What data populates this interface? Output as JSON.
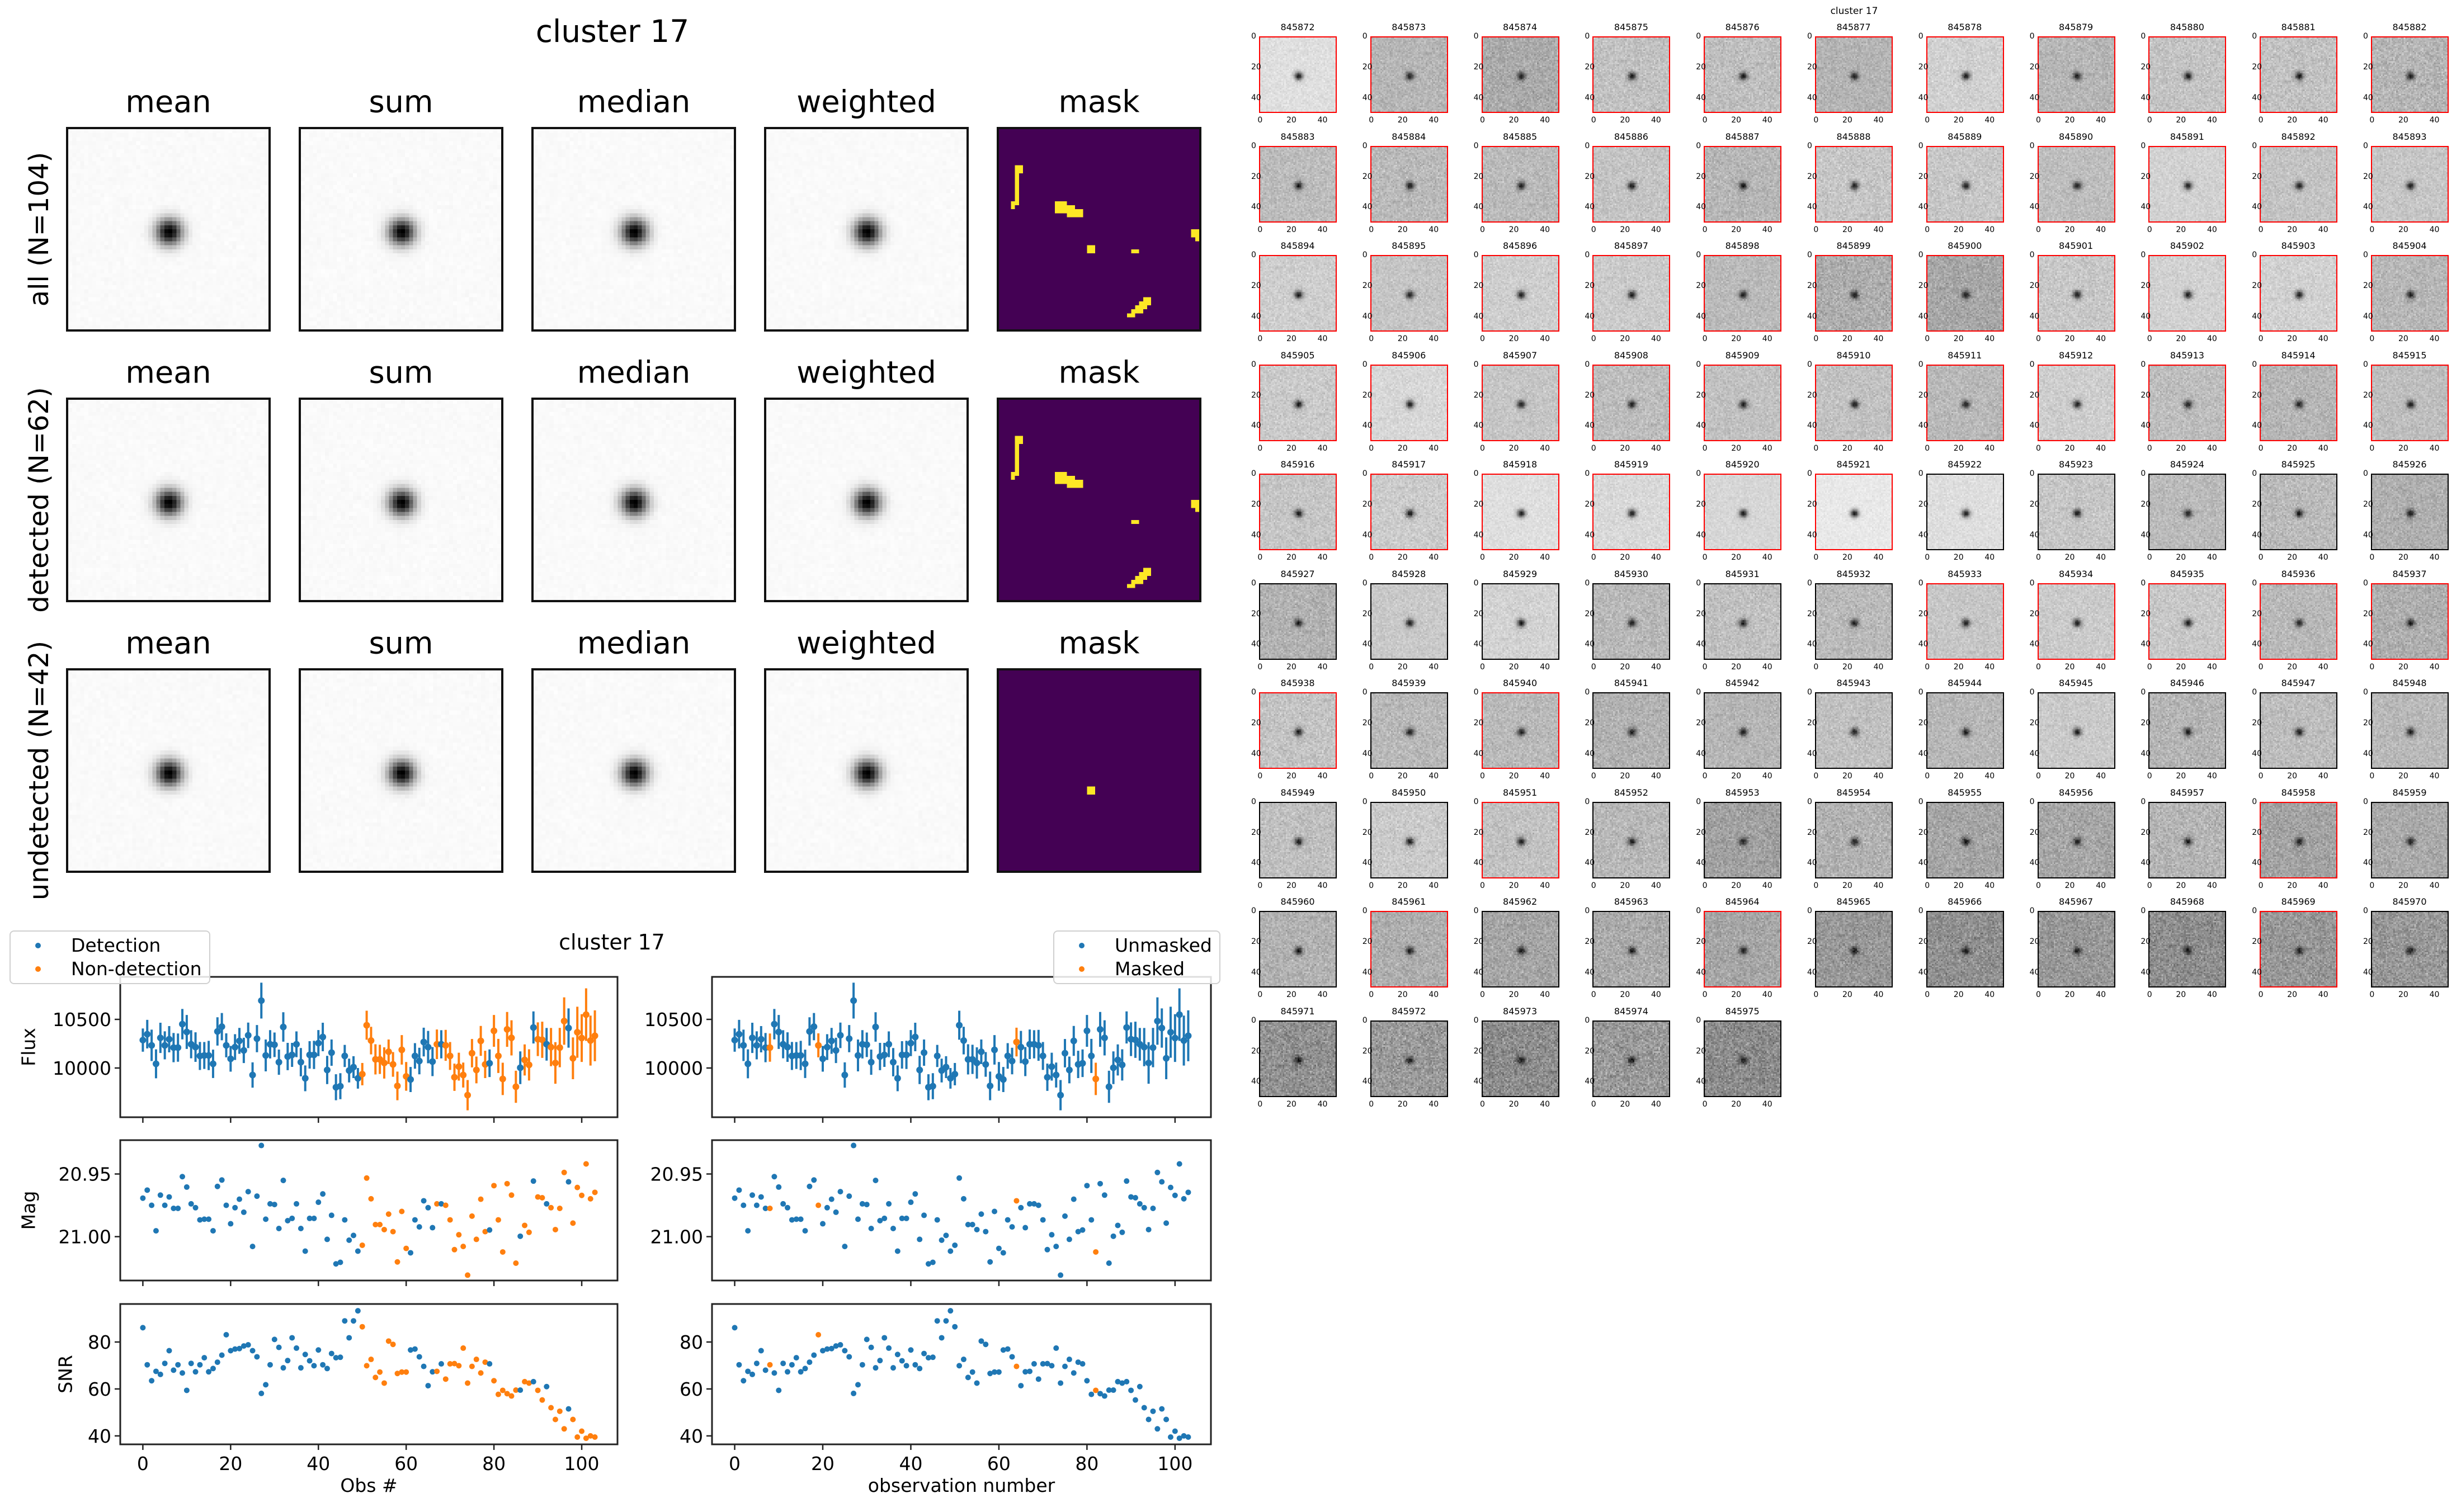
{
  "stacks": {
    "title": "cluster 17",
    "columns": [
      "mean",
      "sum",
      "median",
      "weighted",
      "mask"
    ],
    "rows": [
      {
        "label": "all (N=104)",
        "mask_cells": [
          [
            9,
            4
          ],
          [
            9,
            5
          ],
          [
            10,
            4
          ],
          [
            10,
            5
          ],
          [
            11,
            4
          ],
          [
            12,
            4
          ],
          [
            13,
            4
          ],
          [
            14,
            4
          ],
          [
            15,
            4
          ],
          [
            16,
            4
          ],
          [
            17,
            4
          ],
          [
            18,
            3
          ],
          [
            18,
            4
          ],
          [
            19,
            3
          ],
          [
            18,
            14
          ],
          [
            18,
            15
          ],
          [
            18,
            16
          ],
          [
            19,
            14
          ],
          [
            19,
            15
          ],
          [
            19,
            16
          ],
          [
            20,
            14
          ],
          [
            20,
            15
          ],
          [
            20,
            16
          ],
          [
            19,
            17
          ],
          [
            19,
            18
          ],
          [
            20,
            17
          ],
          [
            20,
            18
          ],
          [
            21,
            17
          ],
          [
            21,
            18
          ],
          [
            20,
            19
          ],
          [
            20,
            20
          ],
          [
            21,
            19
          ],
          [
            21,
            20
          ],
          [
            29,
            22
          ],
          [
            29,
            23
          ],
          [
            30,
            22
          ],
          [
            30,
            23
          ],
          [
            30,
            33
          ],
          [
            30,
            34
          ],
          [
            25,
            48
          ],
          [
            25,
            49
          ],
          [
            26,
            48
          ],
          [
            26,
            49
          ],
          [
            27,
            49
          ],
          [
            42,
            36
          ],
          [
            42,
            37
          ],
          [
            43,
            35
          ],
          [
            43,
            36
          ],
          [
            43,
            37
          ],
          [
            44,
            34
          ],
          [
            44,
            35
          ],
          [
            44,
            36
          ],
          [
            45,
            33
          ],
          [
            45,
            34
          ],
          [
            45,
            35
          ],
          [
            46,
            32
          ],
          [
            46,
            33
          ]
        ]
      },
      {
        "label": "detected (N=62)",
        "mask_cells": [
          [
            9,
            4
          ],
          [
            9,
            5
          ],
          [
            10,
            4
          ],
          [
            10,
            5
          ],
          [
            11,
            4
          ],
          [
            12,
            4
          ],
          [
            13,
            4
          ],
          [
            14,
            4
          ],
          [
            15,
            4
          ],
          [
            16,
            4
          ],
          [
            17,
            4
          ],
          [
            18,
            3
          ],
          [
            18,
            4
          ],
          [
            19,
            3
          ],
          [
            18,
            14
          ],
          [
            18,
            15
          ],
          [
            18,
            16
          ],
          [
            19,
            14
          ],
          [
            19,
            15
          ],
          [
            19,
            16
          ],
          [
            20,
            14
          ],
          [
            20,
            15
          ],
          [
            20,
            16
          ],
          [
            19,
            17
          ],
          [
            19,
            18
          ],
          [
            20,
            17
          ],
          [
            20,
            18
          ],
          [
            21,
            17
          ],
          [
            21,
            18
          ],
          [
            20,
            19
          ],
          [
            20,
            20
          ],
          [
            21,
            19
          ],
          [
            21,
            20
          ],
          [
            30,
            33
          ],
          [
            30,
            34
          ],
          [
            25,
            48
          ],
          [
            25,
            49
          ],
          [
            26,
            48
          ],
          [
            26,
            49
          ],
          [
            27,
            49
          ],
          [
            42,
            36
          ],
          [
            42,
            37
          ],
          [
            43,
            35
          ],
          [
            43,
            36
          ],
          [
            43,
            37
          ],
          [
            44,
            34
          ],
          [
            44,
            35
          ],
          [
            44,
            36
          ],
          [
            45,
            33
          ],
          [
            45,
            34
          ],
          [
            45,
            35
          ],
          [
            46,
            32
          ],
          [
            46,
            33
          ]
        ]
      },
      {
        "label": "undetected (N=42)",
        "mask_cells": [
          [
            29,
            22
          ],
          [
            29,
            23
          ],
          [
            30,
            22
          ],
          [
            30,
            23
          ]
        ]
      }
    ],
    "mask_colors": {
      "background": "#440154",
      "masked": "#fde725"
    },
    "colormap": "gray_r"
  },
  "thumbnails": {
    "title": "cluster 17",
    "axis_ticks": [
      "0",
      "20",
      "40"
    ],
    "detected_border_color": "#ff0000",
    "ids": [
      "845872",
      "845873",
      "845874",
      "845875",
      "845876",
      "845877",
      "845878",
      "845879",
      "845880",
      "845881",
      "845882",
      "845883",
      "845884",
      "845885",
      "845886",
      "845887",
      "845888",
      "845889",
      "845890",
      "845891",
      "845892",
      "845893",
      "845894",
      "845895",
      "845896",
      "845897",
      "845898",
      "845899",
      "845900",
      "845901",
      "845902",
      "845903",
      "845904",
      "845905",
      "845906",
      "845907",
      "845908",
      "845909",
      "845910",
      "845911",
      "845912",
      "845913",
      "845914",
      "845915",
      "845916",
      "845917",
      "845918",
      "845919",
      "845920",
      "845921",
      "845922",
      "845923",
      "845924",
      "845925",
      "845926",
      "845927",
      "845928",
      "845929",
      "845930",
      "845931",
      "845932",
      "845933",
      "845934",
      "845935",
      "845936",
      "845937",
      "845938",
      "845939",
      "845940",
      "845941",
      "845942",
      "845943",
      "845944",
      "845945",
      "845946",
      "845947",
      "845948",
      "845949",
      "845950",
      "845951",
      "845952",
      "845953",
      "845954",
      "845955",
      "845956",
      "845957",
      "845958",
      "845959",
      "845960",
      "845961",
      "845962",
      "845963",
      "845964",
      "845965",
      "845966",
      "845967",
      "845968",
      "845969",
      "845970",
      "845971",
      "845972",
      "845973",
      "845974",
      "845975"
    ]
  },
  "lightcurves": {
    "title": "cluster 17",
    "ylabels": [
      "Flux",
      "Mag",
      "SNR"
    ],
    "left": {
      "xlabel": "Obs #",
      "legend": [
        "Detection",
        "Non-detection"
      ],
      "legend_position": "upper-left"
    },
    "right": {
      "xlabel": "observation number",
      "legend": [
        "Unmasked",
        "Masked"
      ],
      "legend_position": "upper-right"
    }
  },
  "chart_data": {
    "type": "scatter",
    "colors": {
      "primary": "#1f77b4",
      "secondary": "#ff7f0e"
    },
    "x": [
      0,
      1,
      2,
      3,
      4,
      5,
      6,
      7,
      8,
      9,
      10,
      11,
      12,
      13,
      14,
      15,
      16,
      17,
      18,
      19,
      20,
      21,
      22,
      23,
      24,
      25,
      26,
      27,
      28,
      29,
      30,
      31,
      32,
      33,
      34,
      35,
      36,
      37,
      38,
      39,
      40,
      41,
      42,
      43,
      44,
      45,
      46,
      47,
      48,
      49,
      50,
      51,
      52,
      53,
      54,
      55,
      56,
      57,
      58,
      59,
      60,
      61,
      62,
      63,
      64,
      65,
      66,
      67,
      68,
      69,
      70,
      71,
      72,
      73,
      74,
      75,
      76,
      77,
      78,
      79,
      80,
      81,
      82,
      83,
      84,
      85,
      86,
      87,
      88,
      89,
      90,
      91,
      92,
      93,
      94,
      95,
      96,
      97,
      98,
      99,
      100,
      101,
      102,
      103
    ],
    "xlim": [
      -5.15,
      108.15
    ],
    "xticks": [
      "0",
      "20",
      "40",
      "60",
      "80",
      "100"
    ],
    "flux": [
      10287,
      10348,
      10233,
      10043,
      10310,
      10233,
      10296,
      10210,
      10210,
      10451,
      10371,
      10244,
      10215,
      10124,
      10129,
      10129,
      10043,
      10376,
      10425,
      10233,
      10095,
      10215,
      10279,
      10181,
      10336,
      9928,
      10302,
      10693,
      10129,
      10244,
      10239,
      10060,
      10422,
      10118,
      10135,
      10244,
      10060,
      9894,
      10135,
      10135,
      10256,
      10319,
      9980,
      10158,
      9802,
      9813,
      10124,
      9974,
      10009,
      9894,
      9937,
      10440,
      10282,
      10089,
      10089,
      10052,
      10167,
      10037,
      9816,
      10187,
      9914,
      9882,
      10124,
      10072,
      10267,
      10215,
      10066,
      10244,
      10244,
      10233,
      10124,
      9905,
      10014,
      9928,
      9721,
      10152,
      9980,
      10279,
      10037,
      10049,
      10382,
      10124,
      9888,
      10397,
      10310,
      9807,
      10003,
      10083,
      10032,
      10417,
      10296,
      10290,
      10244,
      10215,
      10052,
      10210,
      10483,
      10411,
      10100,
      10368,
      10308,
      10549,
      10282,
      10331
    ],
    "snr": [
      86.1,
      70.3,
      63.5,
      67.5,
      66.2,
      70.9,
      76.3,
      68.0,
      70.3,
      66.8,
      59.4,
      70.9,
      67.3,
      70.3,
      73.3,
      67.3,
      68.7,
      71.4,
      74.4,
      83.1,
      76.3,
      77.0,
      77.2,
      78.3,
      78.8,
      76.3,
      73.7,
      58.1,
      61.8,
      70.3,
      81.1,
      77.7,
      69.0,
      72.1,
      81.8,
      77.4,
      69.0,
      74.7,
      72.0,
      69.9,
      76.6,
      70.3,
      68.7,
      75.1,
      73.3,
      73.5,
      89.0,
      81.8,
      89.0,
      93.3,
      86.5,
      69.9,
      72.6,
      64.9,
      67.2,
      62.5,
      80.4,
      79.0,
      66.6,
      67.2,
      67.2,
      76.6,
      77.0,
      73.7,
      69.6,
      61.4,
      67.3,
      67.5,
      70.7,
      64.2,
      70.7,
      70.8,
      69.9,
      77.4,
      62.5,
      69.6,
      72.6,
      66.8,
      71.4,
      70.7,
      63.5,
      57.7,
      59.4,
      58.0,
      57.0,
      59.5,
      59.5,
      63.1,
      62.5,
      63.1,
      59.4,
      55.3,
      61.0,
      52.0,
      47.0,
      50.5,
      43.0,
      51.5,
      47.0,
      39.5,
      42.0,
      39.0,
      40.0,
      39.5
    ],
    "detected": [
      1,
      1,
      1,
      1,
      1,
      1,
      1,
      1,
      1,
      1,
      1,
      1,
      1,
      1,
      1,
      1,
      1,
      1,
      1,
      1,
      1,
      1,
      1,
      1,
      1,
      1,
      1,
      1,
      1,
      1,
      1,
      1,
      1,
      1,
      1,
      1,
      1,
      1,
      1,
      1,
      1,
      1,
      1,
      1,
      1,
      1,
      1,
      1,
      1,
      1,
      0,
      0,
      0,
      0,
      0,
      0,
      0,
      0,
      0,
      0,
      0,
      1,
      1,
      1,
      1,
      1,
      1,
      0,
      1,
      0,
      0,
      0,
      0,
      0,
      0,
      0,
      0,
      0,
      0,
      1,
      0,
      0,
      0,
      0,
      0,
      0,
      1,
      0,
      0,
      1,
      0,
      0,
      1,
      0,
      0,
      0,
      0,
      1,
      0,
      0,
      0,
      0,
      0,
      0
    ],
    "masked": [
      0,
      0,
      0,
      0,
      0,
      0,
      0,
      0,
      1,
      0,
      0,
      0,
      0,
      0,
      0,
      0,
      0,
      0,
      0,
      1,
      0,
      0,
      0,
      0,
      0,
      0,
      0,
      0,
      0,
      0,
      0,
      0,
      0,
      0,
      0,
      0,
      0,
      0,
      0,
      0,
      0,
      0,
      0,
      0,
      0,
      0,
      0,
      0,
      0,
      0,
      0,
      0,
      0,
      0,
      0,
      0,
      0,
      0,
      0,
      0,
      0,
      0,
      0,
      0,
      1,
      0,
      0,
      0,
      0,
      0,
      0,
      0,
      0,
      0,
      0,
      0,
      0,
      0,
      0,
      0,
      0,
      0,
      1,
      0,
      0,
      0,
      0,
      0,
      0,
      0,
      0,
      0,
      0,
      0,
      0,
      0,
      0,
      0,
      0,
      0,
      0,
      0,
      0,
      0
    ],
    "flux_axis": {
      "ylim": [
        9494,
        10937
      ],
      "ticks": [
        10000,
        10500
      ],
      "ticklabels": [
        "10000",
        "10500"
      ]
    },
    "mag_axis": {
      "ylim": [
        21.035,
        20.923
      ],
      "inverted": true,
      "ticks": [
        20.95,
        21.0
      ],
      "ticklabels": [
        "20.95",
        "21.00"
      ],
      "zeropoint": 31
    },
    "snr_axis": {
      "ylim": [
        36.4,
        96.2
      ],
      "ticks": [
        40,
        60,
        80
      ],
      "ticklabels": [
        "40",
        "60",
        "80"
      ]
    },
    "errorbars": "flux / snr"
  }
}
